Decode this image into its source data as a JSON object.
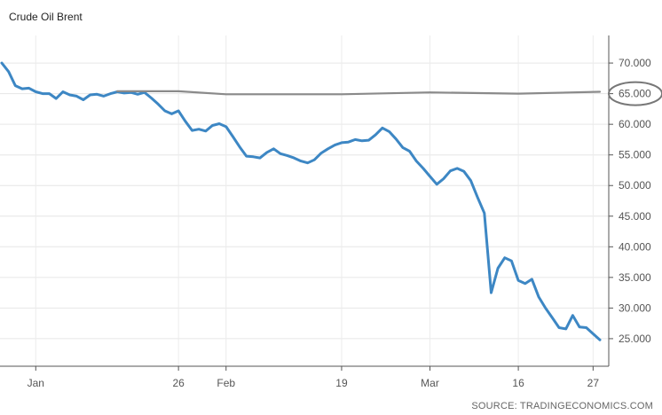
{
  "chart_data": {
    "type": "line",
    "title": "Crude Oil Brent",
    "source": "SOURCE: TRADINGECONOMICS.COM",
    "y_axis": {
      "range": [
        20.5,
        74.5
      ],
      "ticks": [
        "25.000",
        "30.000",
        "35.000",
        "40.000",
        "45.000",
        "50.000",
        "55.000",
        "60.000",
        "65.000",
        "70.000"
      ],
      "tick_values": [
        25,
        30,
        35,
        40,
        45,
        50,
        55,
        60,
        65,
        70
      ],
      "position": "right"
    },
    "x_axis": {
      "range": [
        "2019-12-31",
        "2020-03-28"
      ],
      "ticks": [
        "Jan",
        "26",
        "Feb",
        "19",
        "Mar",
        "16",
        "27"
      ],
      "tick_dates": [
        "2020-01-05",
        "2020-01-26",
        "2020-02-02",
        "2020-02-19",
        "2020-03-03",
        "2020-03-16",
        "2020-03-27"
      ]
    },
    "grid": true,
    "series": [
      {
        "color": "#3d87c4",
        "points": [
          [
            "2019-12-31",
            70.0
          ],
          [
            "2020-01-01",
            68.6
          ],
          [
            "2020-01-02",
            66.3
          ],
          [
            "2020-01-03",
            65.8
          ],
          [
            "2020-01-04",
            65.9
          ],
          [
            "2020-01-05",
            65.3
          ],
          [
            "2020-01-06",
            65.0
          ],
          [
            "2020-01-07",
            65.0
          ],
          [
            "2020-01-08",
            64.2
          ],
          [
            "2020-01-09",
            65.3
          ],
          [
            "2020-01-10",
            64.8
          ],
          [
            "2020-01-11",
            64.6
          ],
          [
            "2020-01-12",
            64.0
          ],
          [
            "2020-01-13",
            64.8
          ],
          [
            "2020-01-14",
            64.9
          ],
          [
            "2020-01-15",
            64.6
          ],
          [
            "2020-01-16",
            65.0
          ],
          [
            "2020-01-17",
            65.3
          ],
          [
            "2020-01-18",
            65.1
          ],
          [
            "2020-01-19",
            65.2
          ],
          [
            "2020-01-20",
            64.9
          ],
          [
            "2020-01-21",
            65.2
          ],
          [
            "2020-01-22",
            64.3
          ],
          [
            "2020-01-23",
            63.3
          ],
          [
            "2020-01-24",
            62.2
          ],
          [
            "2020-01-25",
            61.7
          ],
          [
            "2020-01-26",
            62.2
          ],
          [
            "2020-01-27",
            60.5
          ],
          [
            "2020-01-28",
            59.0
          ],
          [
            "2020-01-29",
            59.2
          ],
          [
            "2020-01-30",
            58.9
          ],
          [
            "2020-01-31",
            59.8
          ],
          [
            "2020-02-01",
            60.1
          ],
          [
            "2020-02-02",
            59.6
          ],
          [
            "2020-02-03",
            58.0
          ],
          [
            "2020-02-04",
            56.3
          ],
          [
            "2020-02-05",
            54.8
          ],
          [
            "2020-02-06",
            54.7
          ],
          [
            "2020-02-07",
            54.5
          ],
          [
            "2020-02-08",
            55.4
          ],
          [
            "2020-02-09",
            56.0
          ],
          [
            "2020-02-10",
            55.2
          ],
          [
            "2020-02-11",
            54.9
          ],
          [
            "2020-02-12",
            54.5
          ],
          [
            "2020-02-13",
            54.0
          ],
          [
            "2020-02-14",
            53.7
          ],
          [
            "2020-02-15",
            54.2
          ],
          [
            "2020-02-16",
            55.3
          ],
          [
            "2020-02-17",
            56.0
          ],
          [
            "2020-02-18",
            56.6
          ],
          [
            "2020-02-19",
            57.0
          ],
          [
            "2020-02-20",
            57.1
          ],
          [
            "2020-02-21",
            57.5
          ],
          [
            "2020-02-22",
            57.3
          ],
          [
            "2020-02-23",
            57.4
          ],
          [
            "2020-02-24",
            58.3
          ],
          [
            "2020-02-25",
            59.4
          ],
          [
            "2020-02-26",
            58.8
          ],
          [
            "2020-02-27",
            57.6
          ],
          [
            "2020-02-28",
            56.2
          ],
          [
            "2020-02-29",
            55.6
          ],
          [
            "2020-03-01",
            54.0
          ],
          [
            "2020-03-02",
            52.8
          ],
          [
            "2020-03-03",
            51.5
          ],
          [
            "2020-03-04",
            50.2
          ],
          [
            "2020-03-05",
            51.1
          ],
          [
            "2020-03-06",
            52.4
          ],
          [
            "2020-03-07",
            52.8
          ],
          [
            "2020-03-08",
            52.3
          ],
          [
            "2020-03-09",
            50.8
          ],
          [
            "2020-03-10",
            48.1
          ],
          [
            "2020-03-11",
            45.5
          ],
          [
            "2020-03-12",
            32.5
          ],
          [
            "2020-03-13",
            36.5
          ],
          [
            "2020-03-14",
            38.2
          ],
          [
            "2020-03-15",
            37.7
          ],
          [
            "2020-03-16",
            34.5
          ],
          [
            "2020-03-17",
            34.0
          ],
          [
            "2020-03-18",
            34.7
          ],
          [
            "2020-03-19",
            31.8
          ],
          [
            "2020-03-20",
            30.0
          ],
          [
            "2020-03-21",
            28.4
          ],
          [
            "2020-03-22",
            26.8
          ],
          [
            "2020-03-23",
            26.6
          ],
          [
            "2020-03-24",
            28.8
          ],
          [
            "2020-03-25",
            26.9
          ],
          [
            "2020-03-26",
            26.8
          ],
          [
            "2020-03-27",
            25.8
          ],
          [
            "2020-03-28",
            24.8
          ]
        ]
      },
      {
        "color": "#8a8a8a",
        "points": [
          [
            "2020-01-17",
            65.4
          ],
          [
            "2020-01-26",
            65.4
          ],
          [
            "2020-02-02",
            64.9
          ],
          [
            "2020-02-19",
            64.9
          ],
          [
            "2020-03-03",
            65.2
          ],
          [
            "2020-03-16",
            65.0
          ],
          [
            "2020-03-28",
            65.3
          ]
        ]
      }
    ],
    "last_value_label": "65.000"
  }
}
